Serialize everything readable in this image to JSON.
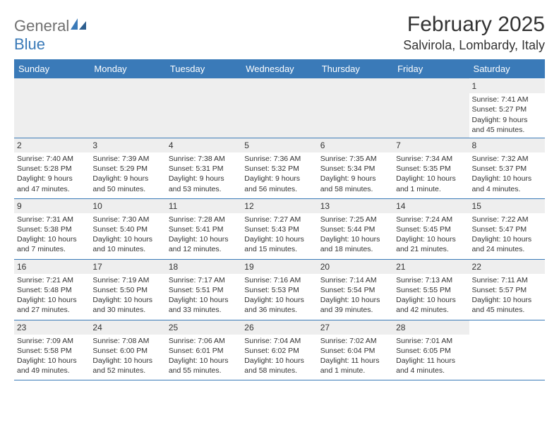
{
  "logo": {
    "word1": "General",
    "word2": "Blue"
  },
  "colors": {
    "accent": "#3a7ab8",
    "header_text": "#ffffff",
    "body_text": "#333333",
    "daynum_bg": "#eeeeee",
    "logo_gray": "#6f6f6f",
    "logo_blue": "#3a7ab8",
    "background": "#ffffff"
  },
  "title": "February 2025",
  "location": "Salvirola, Lombardy, Italy",
  "day_headers": [
    "Sunday",
    "Monday",
    "Tuesday",
    "Wednesday",
    "Thursday",
    "Friday",
    "Saturday"
  ],
  "weeks": [
    [
      null,
      null,
      null,
      null,
      null,
      null,
      {
        "day": "1",
        "sunrise": "Sunrise: 7:41 AM",
        "sunset": "Sunset: 5:27 PM",
        "dl1": "Daylight: 9 hours",
        "dl2": "and 45 minutes."
      }
    ],
    [
      {
        "day": "2",
        "sunrise": "Sunrise: 7:40 AM",
        "sunset": "Sunset: 5:28 PM",
        "dl1": "Daylight: 9 hours",
        "dl2": "and 47 minutes."
      },
      {
        "day": "3",
        "sunrise": "Sunrise: 7:39 AM",
        "sunset": "Sunset: 5:29 PM",
        "dl1": "Daylight: 9 hours",
        "dl2": "and 50 minutes."
      },
      {
        "day": "4",
        "sunrise": "Sunrise: 7:38 AM",
        "sunset": "Sunset: 5:31 PM",
        "dl1": "Daylight: 9 hours",
        "dl2": "and 53 minutes."
      },
      {
        "day": "5",
        "sunrise": "Sunrise: 7:36 AM",
        "sunset": "Sunset: 5:32 PM",
        "dl1": "Daylight: 9 hours",
        "dl2": "and 56 minutes."
      },
      {
        "day": "6",
        "sunrise": "Sunrise: 7:35 AM",
        "sunset": "Sunset: 5:34 PM",
        "dl1": "Daylight: 9 hours",
        "dl2": "and 58 minutes."
      },
      {
        "day": "7",
        "sunrise": "Sunrise: 7:34 AM",
        "sunset": "Sunset: 5:35 PM",
        "dl1": "Daylight: 10 hours",
        "dl2": "and 1 minute."
      },
      {
        "day": "8",
        "sunrise": "Sunrise: 7:32 AM",
        "sunset": "Sunset: 5:37 PM",
        "dl1": "Daylight: 10 hours",
        "dl2": "and 4 minutes."
      }
    ],
    [
      {
        "day": "9",
        "sunrise": "Sunrise: 7:31 AM",
        "sunset": "Sunset: 5:38 PM",
        "dl1": "Daylight: 10 hours",
        "dl2": "and 7 minutes."
      },
      {
        "day": "10",
        "sunrise": "Sunrise: 7:30 AM",
        "sunset": "Sunset: 5:40 PM",
        "dl1": "Daylight: 10 hours",
        "dl2": "and 10 minutes."
      },
      {
        "day": "11",
        "sunrise": "Sunrise: 7:28 AM",
        "sunset": "Sunset: 5:41 PM",
        "dl1": "Daylight: 10 hours",
        "dl2": "and 12 minutes."
      },
      {
        "day": "12",
        "sunrise": "Sunrise: 7:27 AM",
        "sunset": "Sunset: 5:43 PM",
        "dl1": "Daylight: 10 hours",
        "dl2": "and 15 minutes."
      },
      {
        "day": "13",
        "sunrise": "Sunrise: 7:25 AM",
        "sunset": "Sunset: 5:44 PM",
        "dl1": "Daylight: 10 hours",
        "dl2": "and 18 minutes."
      },
      {
        "day": "14",
        "sunrise": "Sunrise: 7:24 AM",
        "sunset": "Sunset: 5:45 PM",
        "dl1": "Daylight: 10 hours",
        "dl2": "and 21 minutes."
      },
      {
        "day": "15",
        "sunrise": "Sunrise: 7:22 AM",
        "sunset": "Sunset: 5:47 PM",
        "dl1": "Daylight: 10 hours",
        "dl2": "and 24 minutes."
      }
    ],
    [
      {
        "day": "16",
        "sunrise": "Sunrise: 7:21 AM",
        "sunset": "Sunset: 5:48 PM",
        "dl1": "Daylight: 10 hours",
        "dl2": "and 27 minutes."
      },
      {
        "day": "17",
        "sunrise": "Sunrise: 7:19 AM",
        "sunset": "Sunset: 5:50 PM",
        "dl1": "Daylight: 10 hours",
        "dl2": "and 30 minutes."
      },
      {
        "day": "18",
        "sunrise": "Sunrise: 7:17 AM",
        "sunset": "Sunset: 5:51 PM",
        "dl1": "Daylight: 10 hours",
        "dl2": "and 33 minutes."
      },
      {
        "day": "19",
        "sunrise": "Sunrise: 7:16 AM",
        "sunset": "Sunset: 5:53 PM",
        "dl1": "Daylight: 10 hours",
        "dl2": "and 36 minutes."
      },
      {
        "day": "20",
        "sunrise": "Sunrise: 7:14 AM",
        "sunset": "Sunset: 5:54 PM",
        "dl1": "Daylight: 10 hours",
        "dl2": "and 39 minutes."
      },
      {
        "day": "21",
        "sunrise": "Sunrise: 7:13 AM",
        "sunset": "Sunset: 5:55 PM",
        "dl1": "Daylight: 10 hours",
        "dl2": "and 42 minutes."
      },
      {
        "day": "22",
        "sunrise": "Sunrise: 7:11 AM",
        "sunset": "Sunset: 5:57 PM",
        "dl1": "Daylight: 10 hours",
        "dl2": "and 45 minutes."
      }
    ],
    [
      {
        "day": "23",
        "sunrise": "Sunrise: 7:09 AM",
        "sunset": "Sunset: 5:58 PM",
        "dl1": "Daylight: 10 hours",
        "dl2": "and 49 minutes."
      },
      {
        "day": "24",
        "sunrise": "Sunrise: 7:08 AM",
        "sunset": "Sunset: 6:00 PM",
        "dl1": "Daylight: 10 hours",
        "dl2": "and 52 minutes."
      },
      {
        "day": "25",
        "sunrise": "Sunrise: 7:06 AM",
        "sunset": "Sunset: 6:01 PM",
        "dl1": "Daylight: 10 hours",
        "dl2": "and 55 minutes."
      },
      {
        "day": "26",
        "sunrise": "Sunrise: 7:04 AM",
        "sunset": "Sunset: 6:02 PM",
        "dl1": "Daylight: 10 hours",
        "dl2": "and 58 minutes."
      },
      {
        "day": "27",
        "sunrise": "Sunrise: 7:02 AM",
        "sunset": "Sunset: 6:04 PM",
        "dl1": "Daylight: 11 hours",
        "dl2": "and 1 minute."
      },
      {
        "day": "28",
        "sunrise": "Sunrise: 7:01 AM",
        "sunset": "Sunset: 6:05 PM",
        "dl1": "Daylight: 11 hours",
        "dl2": "and 4 minutes."
      },
      null
    ]
  ]
}
